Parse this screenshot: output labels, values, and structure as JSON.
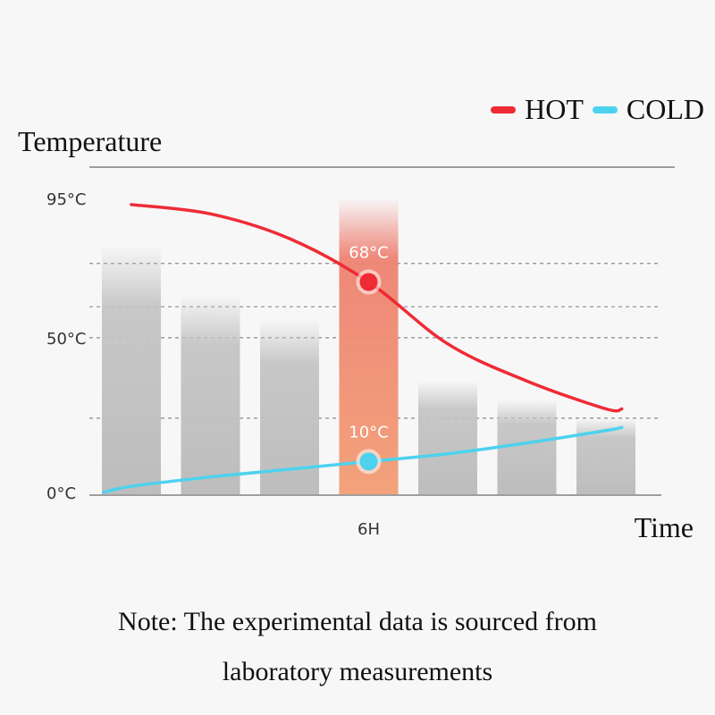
{
  "chart_data": {
    "type": "line",
    "ylabel": "Temperature",
    "xlabel": "Time",
    "ylim": [
      0,
      95
    ],
    "y_ticks": [
      "95°C",
      "50°C",
      "0°C"
    ],
    "y_tick_values": [
      95,
      50,
      0
    ],
    "x_ticks": [
      "6H"
    ],
    "categories": [
      "",
      "",
      "",
      "6H",
      "",
      "",
      ""
    ],
    "bar_values": [
      80,
      64,
      56,
      95,
      36,
      30,
      24
    ],
    "highlight_index": 3,
    "series": [
      {
        "name": "HOT",
        "color": "#ef2b35",
        "x": [
          0,
          1,
          2,
          3,
          4,
          5,
          6,
          6.2
        ],
        "values": [
          93,
          90,
          82,
          68,
          48,
          36,
          27,
          27
        ]
      },
      {
        "name": "COLD",
        "color": "#4dd2ee",
        "x": [
          -0.35,
          0,
          1,
          2,
          3,
          4,
          5,
          6,
          6.2
        ],
        "values": [
          0,
          2,
          5,
          7.5,
          10,
          12.5,
          16,
          20,
          21
        ]
      }
    ],
    "annotations": [
      {
        "series": "HOT",
        "x": 3,
        "value": 68,
        "label": "68°C"
      },
      {
        "series": "COLD",
        "x": 3,
        "value": 10,
        "label": "10°C"
      }
    ]
  },
  "legend": {
    "hot_label": "HOT",
    "cold_label": "COLD",
    "hot_color": "#ef2b35",
    "cold_color": "#4dd2ee"
  },
  "note": {
    "line1": "Note: The experimental data is sourced from",
    "line2": "laboratory measurements"
  }
}
